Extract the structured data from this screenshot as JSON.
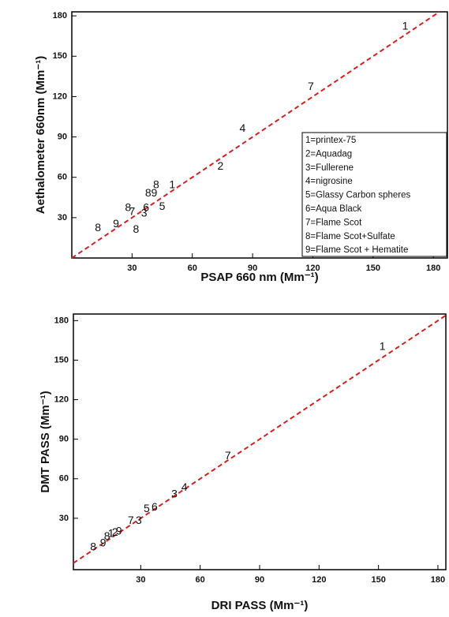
{
  "chart_data": [
    {
      "type": "scatter",
      "x_label": "PSAP 660 nm (Mm⁻¹)",
      "y_label": "Aethalometer 660nm (Mm⁻¹)",
      "xlim": [
        0,
        187
      ],
      "ylim": [
        0,
        183
      ],
      "xticks": [
        30,
        60,
        90,
        120,
        150,
        180
      ],
      "yticks": [
        30,
        60,
        90,
        120,
        150,
        180
      ],
      "ref_line_color": "#d62020",
      "series": [
        {
          "color": "#111111",
          "x": [
            166,
            119,
            85,
            74,
            50,
            42,
            38,
            41,
            45,
            37,
            36,
            28,
            30,
            22,
            13,
            32
          ],
          "values": [
            172,
            127,
            96,
            68,
            54,
            54,
            48,
            48,
            38,
            37,
            33,
            37,
            34,
            25,
            22,
            21
          ],
          "point_labels": [
            "1",
            "7",
            "4",
            "2",
            "1",
            "8",
            "8",
            "9",
            "5",
            "6",
            "3",
            "8",
            "7",
            "9",
            "8",
            "8"
          ]
        }
      ],
      "legend_entries": [
        "1=printex-75",
        "2=Aquadag",
        "3=Fullerene",
        "4=nigrosine",
        "5=Glassy Carbon spheres",
        "6=Aqua Black",
        "7=Flame Scot",
        "8=Flame Scot+Sulfate",
        "9=Flame Scot +  Hematite"
      ]
    },
    {
      "type": "scatter",
      "x_label": "DRI PASS (Mm⁻¹)",
      "y_label": "DMT PASS (Mm⁻¹)",
      "xlim": [
        -4,
        184
      ],
      "ylim": [
        -9,
        185
      ],
      "xticks": [
        30,
        60,
        90,
        120,
        150,
        180
      ],
      "yticks": [
        30,
        60,
        90,
        120,
        150,
        180
      ],
      "ref_line_color": "#d62020",
      "series": [
        {
          "color": "#111111",
          "x": [
            152,
            74,
            52,
            47,
            37,
            33,
            29,
            25,
            19,
            17,
            15,
            13,
            11,
            6
          ],
          "values": [
            160,
            77,
            53,
            48,
            38,
            37,
            28,
            28,
            20,
            19,
            18,
            16,
            11,
            8
          ],
          "point_labels": [
            "1",
            "7",
            "4",
            "3",
            "6",
            "5",
            "3",
            "7",
            "9",
            "2",
            "1",
            "8",
            "9",
            "8"
          ]
        }
      ]
    }
  ]
}
